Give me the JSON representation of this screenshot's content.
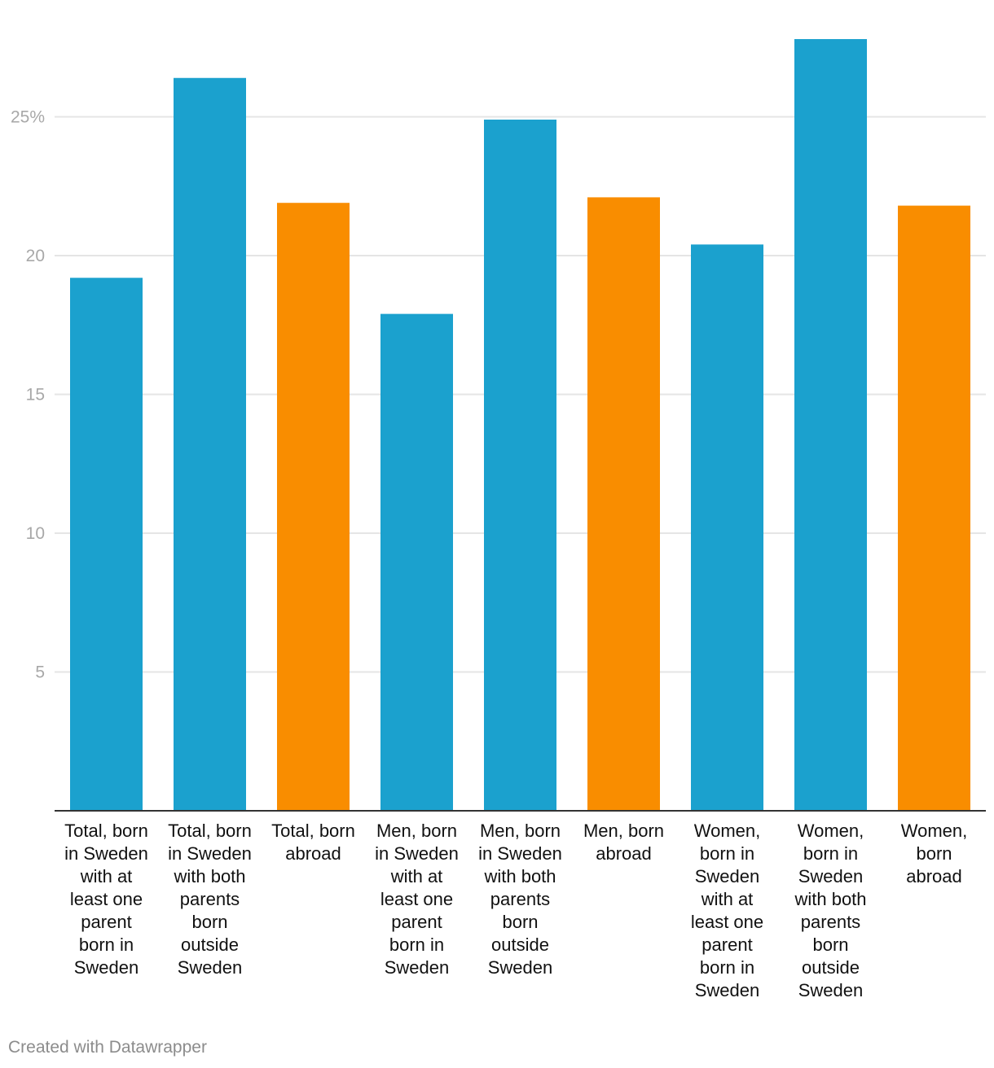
{
  "chart_data": {
    "type": "bar",
    "title": "",
    "xlabel": "",
    "ylabel": "",
    "categories": [
      [
        "Total, born",
        "in Sweden",
        "with at",
        "least one",
        "parent",
        "born in",
        "Sweden"
      ],
      [
        "Total, born",
        "in Sweden",
        "with both",
        "parents",
        "born",
        "outside",
        "Sweden"
      ],
      [
        "Total, born",
        "abroad"
      ],
      [
        "Men, born",
        "in Sweden",
        "with at",
        "least one",
        "parent",
        "born in",
        "Sweden"
      ],
      [
        "Men, born",
        "in Sweden",
        "with both",
        "parents",
        "born",
        "outside",
        "Sweden"
      ],
      [
        "Men, born",
        "abroad"
      ],
      [
        "Women,",
        "born in",
        "Sweden",
        "with at",
        "least one",
        "parent",
        "born in",
        "Sweden"
      ],
      [
        "Women,",
        "born in",
        "Sweden",
        "with both",
        "parents",
        "born",
        "outside",
        "Sweden"
      ],
      [
        "Women,",
        "born",
        "abroad"
      ]
    ],
    "values": [
      19.2,
      26.4,
      21.9,
      17.9,
      24.9,
      22.1,
      20.4,
      27.8,
      21.8
    ],
    "bar_colors": [
      "#1ba1ce",
      "#1ba1ce",
      "#f98d00",
      "#1ba1ce",
      "#1ba1ce",
      "#f98d00",
      "#1ba1ce",
      "#1ba1ce",
      "#f98d00"
    ],
    "ylim": [
      0,
      28
    ],
    "yticks": [
      {
        "value": 5,
        "label": "5"
      },
      {
        "value": 10,
        "label": "10"
      },
      {
        "value": 15,
        "label": "15"
      },
      {
        "value": 20,
        "label": "20"
      },
      {
        "value": 25,
        "label": "25%"
      }
    ],
    "grid": true,
    "grid_color": "#e5e5e5",
    "axis_color": "#333333"
  },
  "footer": {
    "credit": "Created with Datawrapper"
  }
}
